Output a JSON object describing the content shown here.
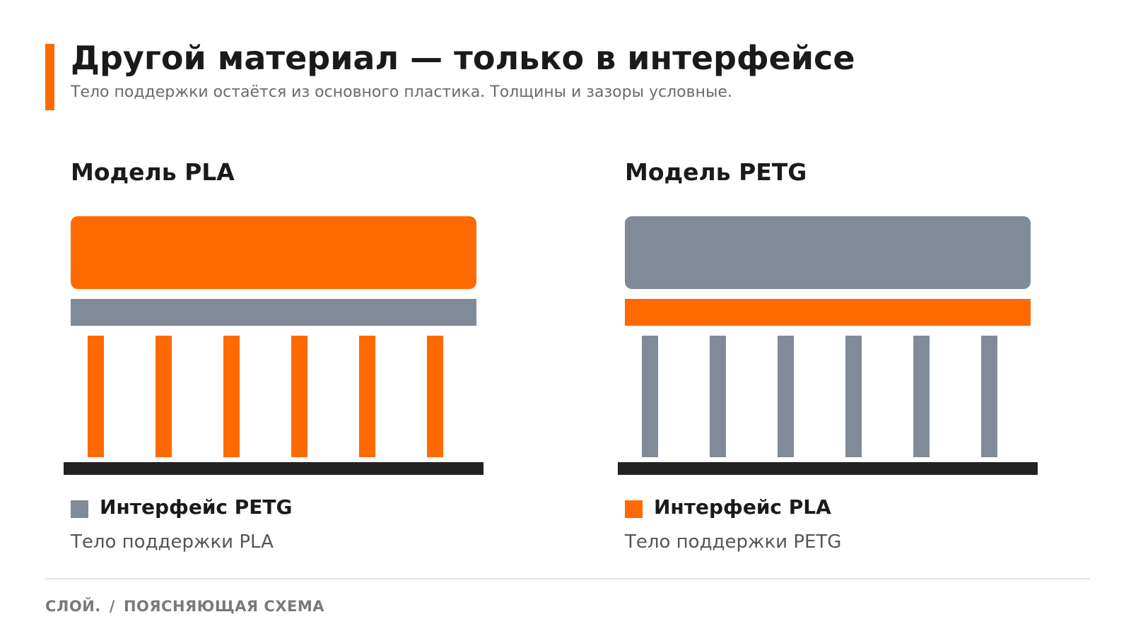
{
  "header": {
    "title": "Другой материал — только в интерфейсе",
    "subtitle": "Тело поддержки остаётся из основного пластика. Толщины и зазоры условные."
  },
  "colors": {
    "accent": "#ff6a00",
    "gray_material": "#808b97",
    "plate": "#222222"
  },
  "panels": [
    {
      "title": "Модель PLA",
      "model_color": "#ff6a00",
      "interface_color": "#808b97",
      "support_color": "#ff6a00",
      "pillar_count": 6,
      "legend_color": "#808b97",
      "legend_label": "Интерфейс PETG",
      "legend_sub": "Тело поддержки PLA"
    },
    {
      "title": "Модель PETG",
      "model_color": "#808b97",
      "interface_color": "#ff6a00",
      "support_color": "#808b97",
      "pillar_count": 6,
      "legend_color": "#ff6a00",
      "legend_label": "Интерфейс PLA",
      "legend_sub": "Тело поддержки PETG"
    }
  ],
  "footer": {
    "left": "СЛОЙ.",
    "separator": "/",
    "right": "ПОЯСНЯЮЩАЯ СХЕМА"
  }
}
